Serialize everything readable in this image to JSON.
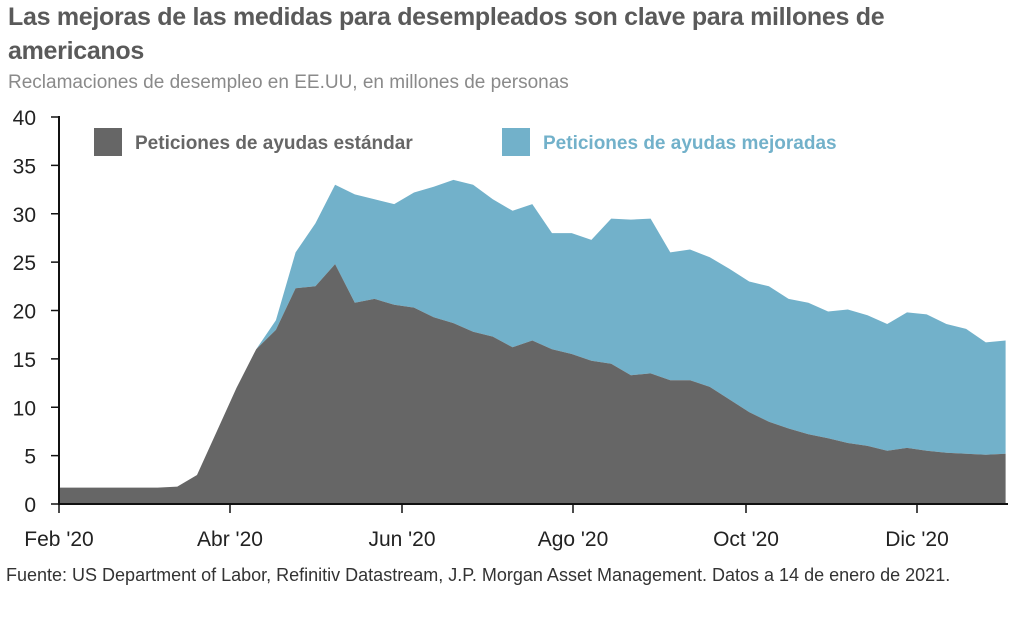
{
  "header": {
    "title": "Las mejoras de las medidas para desempleados son clave para millones de americanos",
    "subtitle": "Reclamaciones de desempleo en EE.UU, en millones de personas"
  },
  "footer": {
    "source": "Fuente: US Department of Labor, Refinitiv Datastream, J.P. Morgan Asset Management. Datos a 14 de enero de 2021."
  },
  "colors": {
    "standard": "#666666",
    "enhanced": "#72b1ca",
    "axis": "#111111"
  },
  "chart_data": {
    "type": "area",
    "stacked": true,
    "title": "Las mejoras de las medidas para desempleados son clave para millones de americanos",
    "subtitle": "Reclamaciones de desempleo en EE.UU, en millones de personas",
    "xlabel": "",
    "ylabel": "",
    "ylim": [
      0,
      40
    ],
    "yticks": [
      0,
      5,
      10,
      15,
      20,
      25,
      30,
      35,
      40
    ],
    "xtick_labels": [
      "Feb '20",
      "Abr '20",
      "Jun '20",
      "Ago '20",
      "Oct '20",
      "Dic '20"
    ],
    "x_start": "2020-02-01",
    "x_frequency": "weekly",
    "legend": "top",
    "grid": false,
    "series": [
      {
        "name": "Peticiones de ayudas estándar",
        "color": "#666666",
        "values": [
          1.7,
          1.7,
          1.7,
          1.7,
          1.7,
          1.7,
          1.8,
          3.0,
          7.5,
          12.0,
          16.0,
          18.0,
          22.3,
          22.5,
          24.8,
          20.8,
          21.2,
          20.6,
          20.3,
          19.3,
          18.7,
          17.8,
          17.3,
          16.2,
          16.9,
          16.0,
          15.5,
          14.8,
          14.5,
          13.3,
          13.5,
          12.8,
          12.8,
          12.1,
          10.8,
          9.5,
          8.5,
          7.8,
          7.2,
          6.8,
          6.3,
          6.0,
          5.5,
          5.8,
          5.5,
          5.3,
          5.2,
          5.1,
          5.2
        ]
      },
      {
        "name": "Peticiones de ayudas mejoradas",
        "color": "#72b1ca",
        "values": [
          0,
          0,
          0,
          0,
          0,
          0,
          0,
          0,
          0,
          0,
          0,
          1.0,
          3.7,
          6.5,
          8.2,
          11.2,
          10.3,
          10.4,
          11.9,
          13.5,
          14.8,
          15.2,
          14.2,
          14.1,
          14.1,
          12.0,
          12.5,
          12.5,
          15.0,
          16.1,
          16.0,
          13.2,
          13.5,
          13.4,
          13.5,
          13.5,
          14.0,
          13.4,
          13.6,
          13.1,
          13.8,
          13.5,
          13.1,
          14.0,
          14.1,
          13.3,
          12.9,
          11.6,
          11.7
        ]
      }
    ]
  }
}
